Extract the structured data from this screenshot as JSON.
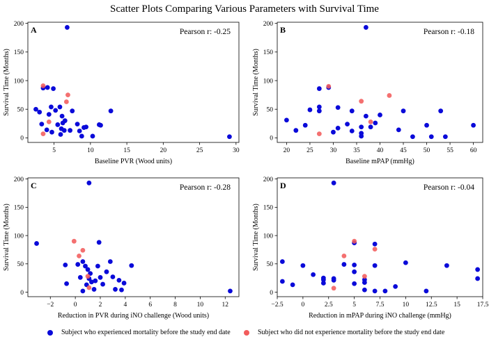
{
  "figure_title": "Scatter Plots Comparing Various Parameters with Survival Time",
  "colors": {
    "mortality": "#0a0ad9",
    "no_mortality": "#f25c5c"
  },
  "legend": {
    "mortality_label": "Subject who experienced mortality before the study end date",
    "no_mortality_label": "Subject who did not experience mortality before the study end date"
  },
  "chart_data": [
    {
      "type": "scatter",
      "panel": "A",
      "pearson_label": "Pearson r: -0.25",
      "xlabel": "Baseline PVR (Wood units)",
      "ylabel": "Survival Time (Months)",
      "xlim": [
        1.4,
        30.4
      ],
      "ylim": [
        -8,
        202
      ],
      "xticks": [
        5,
        10,
        15,
        20,
        25,
        30
      ],
      "yticks": [
        0,
        50,
        100,
        150,
        200
      ],
      "series": [
        {
          "name": "mortality",
          "points": [
            [
              6.8,
              193
            ],
            [
              2.5,
              50
            ],
            [
              3,
              45
            ],
            [
              3.5,
              87
            ],
            [
              4.1,
              88
            ],
            [
              4.9,
              86
            ],
            [
              4.6,
              54
            ],
            [
              5.2,
              48
            ],
            [
              4.3,
              41
            ],
            [
              5.8,
              54
            ],
            [
              6.1,
              38
            ],
            [
              6.5,
              30
            ],
            [
              7.5,
              47
            ],
            [
              6.2,
              26
            ],
            [
              5.5,
              23
            ],
            [
              4,
              14
            ],
            [
              4.7,
              10
            ],
            [
              5.9,
              6
            ],
            [
              6.4,
              13
            ],
            [
              6,
              16
            ],
            [
              7.2,
              13
            ],
            [
              8.2,
              24
            ],
            [
              8.5,
              12
            ],
            [
              8.8,
              3
            ],
            [
              9.1,
              18
            ],
            [
              9.4,
              19
            ],
            [
              10.3,
              3
            ],
            [
              11.2,
              23
            ],
            [
              11.4,
              22
            ],
            [
              12.8,
              47
            ],
            [
              3.3,
              24
            ],
            [
              29.1,
              2
            ]
          ]
        },
        {
          "name": "no_mortality",
          "points": [
            [
              3.5,
              91
            ],
            [
              6.9,
              75
            ],
            [
              6.7,
              63
            ],
            [
              4.3,
              28
            ],
            [
              3.5,
              7
            ]
          ]
        }
      ]
    },
    {
      "type": "scatter",
      "panel": "B",
      "pearson_label": "Pearson r: -0.18",
      "xlabel": "Baseline mPAP (mmHg)",
      "ylabel": "Survival Time (Months)",
      "xlim": [
        18,
        62
      ],
      "ylim": [
        -8,
        202
      ],
      "xticks": [
        20,
        25,
        30,
        35,
        40,
        45,
        50,
        55,
        60
      ],
      "yticks": [
        0,
        50,
        100,
        150,
        200
      ],
      "series": [
        {
          "name": "mortality",
          "points": [
            [
              37,
              193
            ],
            [
              20,
              31
            ],
            [
              22,
              13
            ],
            [
              24,
              22
            ],
            [
              25,
              49
            ],
            [
              27,
              47
            ],
            [
              27,
              54
            ],
            [
              27,
              86
            ],
            [
              29,
              88
            ],
            [
              30,
              10
            ],
            [
              31,
              53
            ],
            [
              31,
              17
            ],
            [
              33,
              24
            ],
            [
              34,
              47
            ],
            [
              34,
              12
            ],
            [
              36,
              8
            ],
            [
              36,
              3
            ],
            [
              36,
              19
            ],
            [
              37,
              38
            ],
            [
              38,
              19
            ],
            [
              39,
              26
            ],
            [
              40,
              40
            ],
            [
              44,
              14
            ],
            [
              45,
              47
            ],
            [
              47,
              2
            ],
            [
              50,
              22
            ],
            [
              51,
              2
            ],
            [
              53,
              47
            ],
            [
              54,
              2
            ],
            [
              60,
              22
            ]
          ]
        },
        {
          "name": "no_mortality",
          "points": [
            [
              27,
              7
            ],
            [
              29,
              90
            ],
            [
              36,
              64
            ],
            [
              38,
              28
            ],
            [
              42,
              74
            ]
          ]
        }
      ]
    },
    {
      "type": "scatter",
      "panel": "C",
      "pearson_label": "Pearson r: -0.28",
      "xlabel": "Reduction in PVR during iNO challenge (Wood units)",
      "ylabel": "Survival Time (Months)",
      "xlim": [
        -3.8,
        13.1
      ],
      "ylim": [
        -8,
        202
      ],
      "xticks": [
        -2,
        0,
        2,
        4,
        6,
        8,
        10,
        12
      ],
      "yticks": [
        0,
        50,
        100,
        150,
        200
      ],
      "series": [
        {
          "name": "mortality",
          "points": [
            [
              1.1,
              193
            ],
            [
              -3.1,
              86
            ],
            [
              -0.8,
              48
            ],
            [
              -0.7,
              15
            ],
            [
              0.2,
              49
            ],
            [
              0.4,
              26
            ],
            [
              0.6,
              54
            ],
            [
              0.8,
              46
            ],
            [
              1,
              40
            ],
            [
              1.1,
              24
            ],
            [
              0.9,
              13
            ],
            [
              1.2,
              33
            ],
            [
              1.3,
              18
            ],
            [
              1.5,
              5
            ],
            [
              1.6,
              20
            ],
            [
              1.8,
              46
            ],
            [
              1.9,
              88
            ],
            [
              2,
              26
            ],
            [
              2.2,
              14
            ],
            [
              2.5,
              36
            ],
            [
              2.8,
              54
            ],
            [
              3,
              27
            ],
            [
              3.2,
              5
            ],
            [
              3.5,
              21
            ],
            [
              3.7,
              4
            ],
            [
              3.9,
              16
            ],
            [
              4.5,
              47
            ],
            [
              0.6,
              2
            ],
            [
              12.4,
              2
            ]
          ]
        },
        {
          "name": "no_mortality",
          "points": [
            [
              -0.1,
              90
            ],
            [
              0.3,
              64
            ],
            [
              0.6,
              74
            ],
            [
              1,
              28
            ],
            [
              1.1,
              8
            ]
          ]
        }
      ]
    },
    {
      "type": "scatter",
      "panel": "D",
      "pearson_label": "Pearson r: -0.04",
      "xlabel": "Reduction in mPAP during iNO challenge (mmHg)",
      "ylabel": "Survival Time (Months)",
      "xlim": [
        -2.5,
        17.5
      ],
      "ylim": [
        -8,
        202
      ],
      "xticks": [
        -2.5,
        0,
        2.5,
        5,
        7.5,
        10,
        12.5,
        15,
        17.5
      ],
      "yticks": [
        0,
        50,
        100,
        150,
        200
      ],
      "series": [
        {
          "name": "mortality",
          "points": [
            [
              3,
              193
            ],
            [
              -2,
              54
            ],
            [
              -2,
              19
            ],
            [
              -1,
              13
            ],
            [
              0,
              47
            ],
            [
              1,
              31
            ],
            [
              2,
              25
            ],
            [
              2,
              16
            ],
            [
              2,
              22
            ],
            [
              3,
              21
            ],
            [
              3,
              24
            ],
            [
              4,
              49
            ],
            [
              5,
              48
            ],
            [
              5,
              36
            ],
            [
              5,
              15
            ],
            [
              5,
              87
            ],
            [
              6,
              22
            ],
            [
              6,
              17
            ],
            [
              6,
              4
            ],
            [
              7,
              85
            ],
            [
              7,
              47
            ],
            [
              7,
              2
            ],
            [
              8,
              2
            ],
            [
              9,
              10
            ],
            [
              10,
              52
            ],
            [
              12,
              2
            ],
            [
              14,
              47
            ],
            [
              17,
              40
            ],
            [
              17,
              24
            ]
          ]
        },
        {
          "name": "no_mortality",
          "points": [
            [
              3,
              7
            ],
            [
              4,
              64
            ],
            [
              5,
              90
            ],
            [
              6,
              28
            ],
            [
              7,
              76
            ]
          ]
        }
      ]
    }
  ]
}
